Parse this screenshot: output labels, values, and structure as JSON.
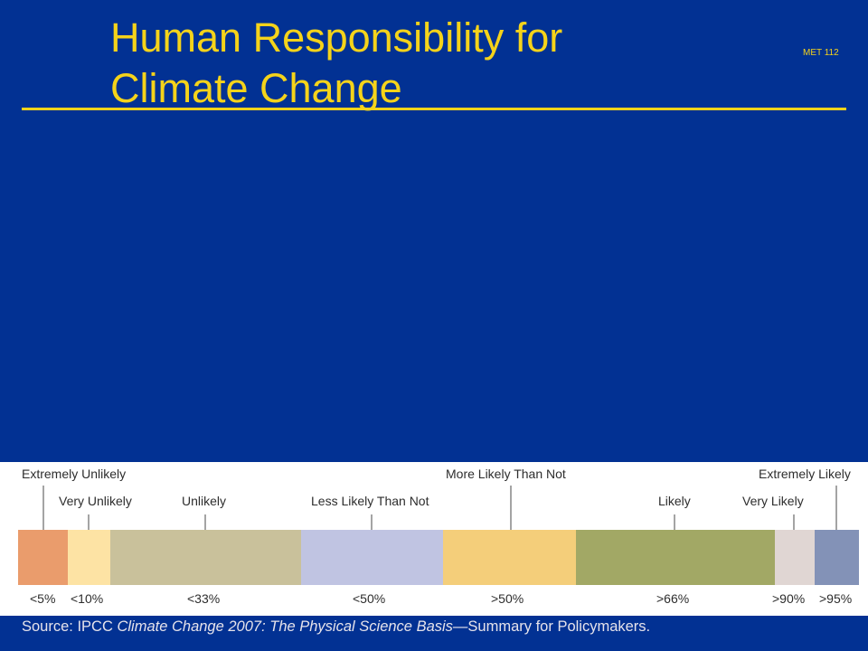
{
  "slide": {
    "title_line1": "Human Responsibility for",
    "title_line2": "Climate Change",
    "course_code": "MET 112"
  },
  "scale": {
    "segments": [
      {
        "color": "#EA9C6C"
      },
      {
        "color": "#FDE3A4"
      },
      {
        "color": "#C9C19B"
      },
      {
        "color": "#C0C4E2"
      },
      {
        "color": "#F4CE7A"
      },
      {
        "color": "#A2A865"
      },
      {
        "color": "#E0D6D3"
      },
      {
        "color": "#8392B7"
      }
    ],
    "likelihood_terms": [
      "Extremely Unlikely",
      "Very Unlikely",
      "Unlikely",
      "Less Likely Than Not",
      "More Likely Than Not",
      "Likely",
      "Very Likely",
      "Extremely Likely"
    ],
    "probability_labels": [
      "<5%",
      "<10%",
      "<33%",
      "<50%",
      ">50%",
      ">66%",
      ">90%",
      ">95%"
    ]
  },
  "source": {
    "prefix": "Source: IPCC ",
    "title_italic": "Climate Change 2007: The Physical Science Basis",
    "suffix": "—Summary for Policymakers."
  }
}
